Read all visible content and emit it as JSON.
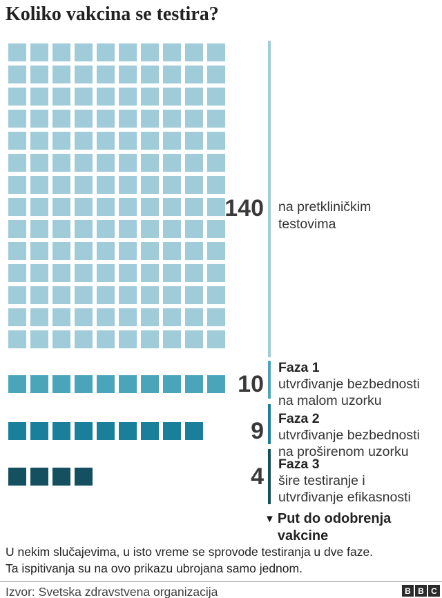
{
  "title": "Koliko vakcina se testira?",
  "colors": {
    "preclinical": "#a0cbd8",
    "phase1": "#4aa5ba",
    "phase2": "#1a7f9b",
    "phase3": "#14505f"
  },
  "chart_data": {
    "type": "waffle",
    "title": "Koliko vakcina se testira?",
    "columns": 10,
    "square_unit": 1,
    "legend_position": "right",
    "groups": [
      {
        "id": "preclinical",
        "value": 140,
        "label_lines": [
          "na pretkliničkim",
          "testovima"
        ],
        "color_key": "preclinical"
      },
      {
        "id": "faza1",
        "value": 10,
        "phase_label": "Faza 1",
        "desc_lines": [
          "utvrđivanje bezbednosti",
          "na malom uzorku"
        ],
        "color_key": "phase1"
      },
      {
        "id": "faza2",
        "value": 9,
        "phase_label": "Faza 2",
        "desc_lines": [
          "utvrđivanje bezbednosti",
          "na proširenom uzorku"
        ],
        "color_key": "phase2"
      },
      {
        "id": "faza3",
        "value": 4,
        "phase_label": "Faza 3",
        "desc_lines": [
          "šire testiranje i",
          "utvrđivanje efikasnosti"
        ],
        "color_key": "phase3"
      }
    ],
    "axis_annotation": {
      "marker": "▼",
      "lines": [
        "Put do odobrenja",
        "vakcine"
      ]
    }
  },
  "footnote_lines": [
    "U nekim slučajevima, u isto vreme se sprovode testiranja u dve faze.",
    "Ta ispitivanja su na ovo prikazu ubrojana samo jednom."
  ],
  "source": "Izvor: Svetska zdravstvena organizacija",
  "logo_blocks": [
    "B",
    "B",
    "C"
  ]
}
